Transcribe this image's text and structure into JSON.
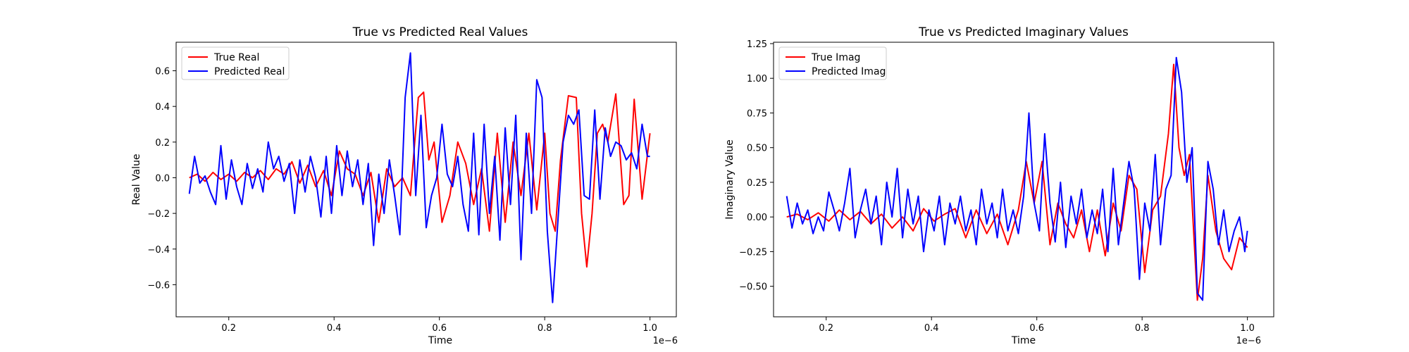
{
  "chart_data": [
    {
      "type": "line",
      "title": "True vs Predicted Real Values",
      "xlabel": "Time",
      "ylabel": "Real Value",
      "x_offset_text": "1e−6",
      "xlim": [
        0.1,
        1.05
      ],
      "ylim": [
        -0.78,
        0.76
      ],
      "xticks": [
        0.2,
        0.4,
        0.6,
        0.8,
        1.0
      ],
      "xtick_labels": [
        "0.2",
        "0.4",
        "0.6",
        "0.8",
        "1.0"
      ],
      "yticks": [
        -0.6,
        -0.4,
        -0.2,
        0.0,
        0.2,
        0.4,
        0.6
      ],
      "ytick_labels": [
        "−0.6",
        "−0.4",
        "−0.2",
        "0.0",
        "0.2",
        "0.4",
        "0.6"
      ],
      "legend_position": "top-left",
      "grid": false,
      "series": [
        {
          "name": "True Real",
          "color": "#ff0000",
          "x": [
            0.125,
            0.14,
            0.155,
            0.17,
            0.185,
            0.2,
            0.215,
            0.23,
            0.245,
            0.26,
            0.275,
            0.29,
            0.305,
            0.32,
            0.335,
            0.35,
            0.365,
            0.38,
            0.395,
            0.41,
            0.425,
            0.44,
            0.455,
            0.47,
            0.485,
            0.5,
            0.515,
            0.53,
            0.545,
            0.56,
            0.57,
            0.58,
            0.59,
            0.605,
            0.62,
            0.635,
            0.65,
            0.665,
            0.68,
            0.695,
            0.71,
            0.725,
            0.74,
            0.755,
            0.77,
            0.785,
            0.8,
            0.81,
            0.82,
            0.83,
            0.845,
            0.86,
            0.87,
            0.88,
            0.89,
            0.9,
            0.91,
            0.92,
            0.935,
            0.95,
            0.96,
            0.97,
            0.985,
            1.0
          ],
          "values": [
            0.0,
            0.02,
            -0.02,
            0.03,
            -0.01,
            0.02,
            -0.02,
            0.03,
            0.0,
            0.04,
            -0.01,
            0.05,
            0.02,
            0.09,
            -0.03,
            0.07,
            -0.05,
            0.04,
            -0.1,
            0.15,
            0.05,
            0.02,
            -0.1,
            0.03,
            -0.25,
            0.05,
            -0.05,
            0.0,
            -0.1,
            0.45,
            0.48,
            0.1,
            0.2,
            -0.25,
            -0.1,
            0.2,
            0.08,
            -0.15,
            0.05,
            -0.3,
            0.25,
            -0.25,
            0.2,
            -0.1,
            0.25,
            -0.18,
            0.25,
            -0.2,
            -0.3,
            0.1,
            0.46,
            0.45,
            -0.2,
            -0.5,
            -0.2,
            0.25,
            0.3,
            0.2,
            0.47,
            -0.15,
            -0.1,
            0.44,
            -0.12,
            0.25
          ]
        },
        {
          "name": "Predicted Real",
          "color": "#0000ff",
          "x": [
            0.125,
            0.135,
            0.145,
            0.155,
            0.165,
            0.175,
            0.185,
            0.195,
            0.205,
            0.215,
            0.225,
            0.235,
            0.245,
            0.255,
            0.265,
            0.275,
            0.285,
            0.295,
            0.305,
            0.315,
            0.325,
            0.335,
            0.345,
            0.355,
            0.365,
            0.375,
            0.385,
            0.395,
            0.405,
            0.415,
            0.425,
            0.435,
            0.445,
            0.455,
            0.465,
            0.475,
            0.485,
            0.495,
            0.505,
            0.515,
            0.525,
            0.535,
            0.545,
            0.555,
            0.565,
            0.575,
            0.585,
            0.595,
            0.605,
            0.615,
            0.625,
            0.635,
            0.645,
            0.655,
            0.665,
            0.675,
            0.685,
            0.695,
            0.705,
            0.715,
            0.725,
            0.735,
            0.745,
            0.755,
            0.765,
            0.775,
            0.785,
            0.795,
            0.805,
            0.815,
            0.825,
            0.835,
            0.845,
            0.855,
            0.865,
            0.875,
            0.885,
            0.895,
            0.905,
            0.915,
            0.925,
            0.935,
            0.945,
            0.955,
            0.965,
            0.975,
            0.985,
            0.995,
            1.0
          ],
          "values": [
            -0.09,
            0.12,
            -0.03,
            0.01,
            -0.08,
            -0.15,
            0.18,
            -0.12,
            0.1,
            -0.05,
            -0.15,
            0.08,
            -0.06,
            0.05,
            -0.08,
            0.2,
            0.05,
            0.12,
            -0.02,
            0.08,
            -0.2,
            0.1,
            -0.08,
            0.12,
            0.0,
            -0.22,
            0.12,
            -0.2,
            0.18,
            -0.1,
            0.15,
            -0.05,
            0.1,
            -0.15,
            0.08,
            -0.38,
            0.02,
            -0.2,
            0.1,
            -0.1,
            -0.32,
            0.45,
            0.7,
            -0.1,
            0.35,
            -0.28,
            -0.1,
            0.0,
            0.3,
            0.02,
            -0.05,
            0.12,
            -0.15,
            -0.3,
            0.25,
            -0.32,
            0.3,
            -0.2,
            0.12,
            -0.35,
            0.28,
            -0.15,
            0.35,
            -0.46,
            0.25,
            -0.2,
            0.55,
            0.45,
            -0.3,
            -0.7,
            -0.25,
            0.2,
            0.35,
            0.3,
            0.38,
            -0.1,
            -0.12,
            0.38,
            -0.12,
            0.28,
            0.12,
            0.2,
            0.18,
            0.1,
            0.14,
            0.05,
            0.3,
            0.12,
            0.12
          ]
        }
      ]
    },
    {
      "type": "line",
      "title": "True vs Predicted Imaginary Values",
      "xlabel": "Time",
      "ylabel": "Imaginary Value",
      "x_offset_text": "1e−6",
      "xlim": [
        0.1,
        1.05
      ],
      "ylim": [
        -0.72,
        1.26
      ],
      "xticks": [
        0.2,
        0.4,
        0.6,
        0.8,
        1.0
      ],
      "xtick_labels": [
        "0.2",
        "0.4",
        "0.6",
        "0.8",
        "1.0"
      ],
      "yticks": [
        -0.5,
        -0.25,
        0.0,
        0.25,
        0.5,
        0.75,
        1.0,
        1.25
      ],
      "ytick_labels": [
        "−0.50",
        "−0.25",
        "0.00",
        "0.25",
        "0.50",
        "0.75",
        "1.00",
        "1.25"
      ],
      "legend_position": "top-left",
      "grid": false,
      "series": [
        {
          "name": "True Imag",
          "color": "#ff0000",
          "x": [
            0.125,
            0.145,
            0.165,
            0.185,
            0.205,
            0.225,
            0.245,
            0.265,
            0.285,
            0.305,
            0.325,
            0.345,
            0.365,
            0.385,
            0.405,
            0.425,
            0.445,
            0.465,
            0.485,
            0.505,
            0.525,
            0.545,
            0.565,
            0.58,
            0.595,
            0.61,
            0.625,
            0.64,
            0.655,
            0.67,
            0.685,
            0.7,
            0.715,
            0.73,
            0.745,
            0.76,
            0.775,
            0.79,
            0.805,
            0.82,
            0.835,
            0.85,
            0.86,
            0.87,
            0.88,
            0.89,
            0.905,
            0.915,
            0.925,
            0.94,
            0.955,
            0.97,
            0.985,
            1.0
          ],
          "values": [
            0.0,
            0.02,
            -0.02,
            0.03,
            -0.03,
            0.05,
            -0.02,
            0.04,
            -0.05,
            0.02,
            -0.08,
            0.0,
            -0.1,
            0.06,
            -0.03,
            0.02,
            0.06,
            -0.15,
            0.05,
            -0.12,
            0.02,
            -0.2,
            0.05,
            0.4,
            0.1,
            0.4,
            -0.2,
            0.1,
            -0.05,
            -0.15,
            0.05,
            -0.25,
            0.05,
            -0.28,
            0.1,
            -0.1,
            0.3,
            0.2,
            -0.4,
            0.05,
            0.15,
            0.6,
            1.1,
            0.5,
            0.3,
            0.45,
            -0.6,
            -0.3,
            0.3,
            -0.1,
            -0.3,
            -0.38,
            -0.15,
            -0.22
          ]
        },
        {
          "name": "Predicted Imag",
          "color": "#0000ff",
          "x": [
            0.125,
            0.135,
            0.145,
            0.155,
            0.165,
            0.175,
            0.185,
            0.195,
            0.205,
            0.215,
            0.225,
            0.235,
            0.245,
            0.255,
            0.265,
            0.275,
            0.285,
            0.295,
            0.305,
            0.315,
            0.325,
            0.335,
            0.345,
            0.355,
            0.365,
            0.375,
            0.385,
            0.395,
            0.405,
            0.415,
            0.425,
            0.435,
            0.445,
            0.455,
            0.465,
            0.475,
            0.485,
            0.495,
            0.505,
            0.515,
            0.525,
            0.535,
            0.545,
            0.555,
            0.565,
            0.575,
            0.585,
            0.595,
            0.605,
            0.615,
            0.625,
            0.635,
            0.645,
            0.655,
            0.665,
            0.675,
            0.685,
            0.695,
            0.705,
            0.715,
            0.725,
            0.735,
            0.745,
            0.755,
            0.765,
            0.775,
            0.785,
            0.795,
            0.805,
            0.815,
            0.825,
            0.835,
            0.845,
            0.855,
            0.865,
            0.875,
            0.885,
            0.895,
            0.905,
            0.915,
            0.925,
            0.935,
            0.945,
            0.955,
            0.965,
            0.975,
            0.985,
            0.995,
            1.0
          ],
          "values": [
            0.15,
            -0.08,
            0.1,
            -0.05,
            0.05,
            -0.12,
            0.0,
            -0.1,
            0.18,
            0.05,
            -0.1,
            0.1,
            0.35,
            -0.15,
            0.05,
            0.2,
            -0.05,
            0.15,
            -0.2,
            0.25,
            0.0,
            0.35,
            -0.15,
            0.2,
            -0.05,
            0.15,
            -0.25,
            0.05,
            -0.1,
            0.15,
            -0.2,
            0.1,
            -0.05,
            0.15,
            -0.1,
            0.05,
            -0.2,
            0.2,
            -0.05,
            0.1,
            -0.15,
            0.2,
            -0.1,
            0.05,
            -0.12,
            0.15,
            0.75,
            0.1,
            -0.1,
            0.6,
            0.1,
            -0.18,
            0.25,
            -0.22,
            0.15,
            -0.05,
            0.2,
            -0.15,
            0.05,
            -0.12,
            0.2,
            -0.25,
            0.35,
            -0.2,
            0.1,
            0.4,
            0.2,
            -0.45,
            0.1,
            -0.1,
            0.45,
            -0.2,
            0.2,
            0.3,
            1.15,
            0.9,
            0.25,
            0.5,
            -0.55,
            -0.6,
            0.4,
            0.2,
            -0.2,
            0.05,
            -0.25,
            -0.1,
            0.0,
            -0.25,
            -0.1
          ]
        }
      ]
    }
  ]
}
